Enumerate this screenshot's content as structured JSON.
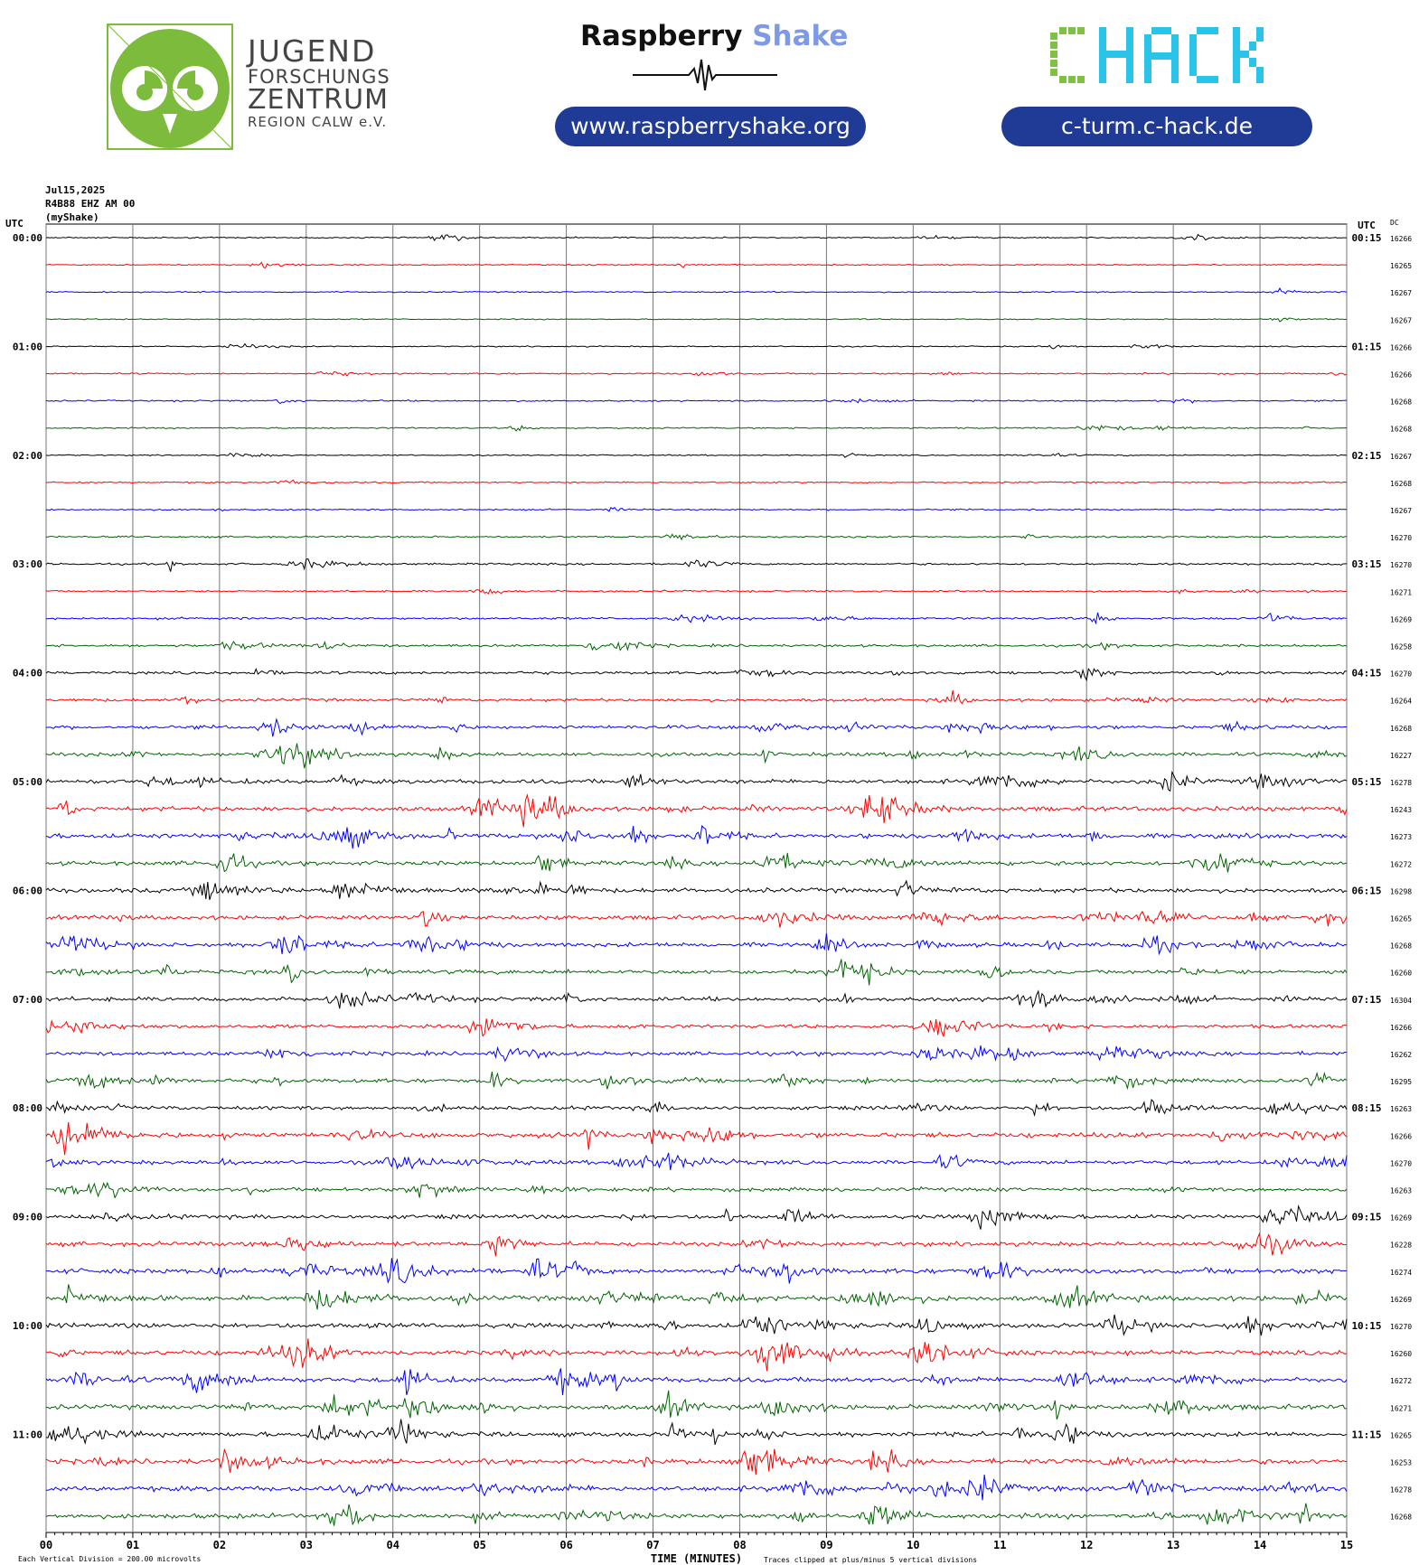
{
  "header": {
    "jfz": {
      "line1": "JUGEND",
      "line2": "FORSCHUNGS",
      "line3": "ZENTRUM",
      "line4": "REGION CALW e.V.",
      "colors": {
        "green": "#7dbb3c",
        "text": "#444444"
      }
    },
    "raspberry_shake": {
      "word1": "Raspberry",
      "word2": "Shake",
      "url": "www.raspberryshake.org"
    },
    "chack": {
      "logo_text": "CHACK",
      "url": "c-turm.c-hack.de",
      "colors": {
        "c_green": "#7dc242",
        "hack_cyan": "#29c4e8"
      }
    },
    "pill_color": "#1f3b95"
  },
  "meta": {
    "date": "Jul15,2025",
    "station": "R4B88 EHZ AM 00",
    "source": "(myShake)"
  },
  "chart_data": {
    "type": "line",
    "title": "",
    "left_axis_label": "UTC",
    "right_axis_label": "UTC",
    "dc_label": "DC",
    "xlabel": "TIME (MINUTES)",
    "x_ticks": [
      "00",
      "01",
      "02",
      "03",
      "04",
      "05",
      "06",
      "07",
      "08",
      "09",
      "10",
      "11",
      "12",
      "13",
      "14",
      "15"
    ],
    "xlim": [
      0,
      15
    ],
    "left_time_labels": [
      "00:00",
      "01:00",
      "02:00",
      "03:00",
      "04:00",
      "05:00",
      "06:00",
      "07:00",
      "08:00",
      "09:00",
      "10:00",
      "11:00"
    ],
    "right_time_labels": [
      "00:15",
      "01:15",
      "02:15",
      "03:15",
      "04:15",
      "05:15",
      "06:15",
      "07:15",
      "08:15",
      "09:15",
      "10:15",
      "11:15"
    ],
    "line_colors": [
      "#000000",
      "#ff0000",
      "#0000ff",
      "#006400"
    ],
    "dc_values": [
      "16266",
      "16265",
      "16267",
      "16267",
      "16266",
      "16266",
      "16268",
      "16268",
      "16267",
      "16268",
      "16267",
      "16270",
      "16270",
      "16271",
      "16269",
      "16258",
      "16270",
      "16264",
      "16268",
      "16227",
      "16278",
      "16243",
      "16273",
      "16272",
      "16298",
      "16265",
      "16268",
      "16260",
      "16304",
      "16266",
      "16262",
      "16295",
      "16263",
      "16266",
      "16270",
      "16263",
      "16269",
      "16228",
      "16274",
      "16269",
      "16270",
      "16260",
      "16272",
      "16271",
      "16265",
      "16253",
      "16278",
      "16268"
    ],
    "activity_level": [
      0.12,
      0.1,
      0.1,
      0.08,
      0.1,
      0.15,
      0.15,
      0.15,
      0.1,
      0.15,
      0.15,
      0.2,
      0.25,
      0.2,
      0.3,
      0.35,
      0.4,
      0.45,
      0.55,
      0.6,
      0.7,
      0.75,
      0.75,
      0.7,
      0.75,
      0.7,
      0.7,
      0.65,
      0.65,
      0.55,
      0.6,
      0.65,
      0.6,
      0.8,
      0.65,
      0.6,
      0.65,
      0.7,
      0.8,
      0.85,
      0.8,
      0.8,
      0.8,
      0.8,
      0.75,
      0.85,
      0.85,
      0.85
    ],
    "footer_left": "Each Vertical Division =  200.00 microvolts",
    "footer_right": "Traces clipped at plus/minus 5 vertical divisions"
  }
}
